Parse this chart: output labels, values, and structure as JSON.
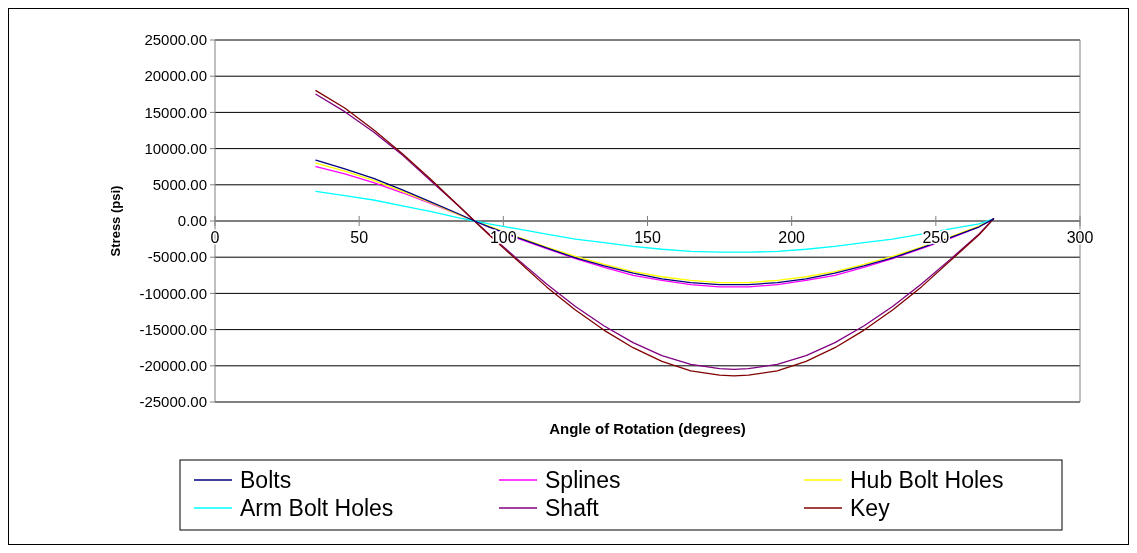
{
  "chart_data": {
    "type": "line",
    "xlabel": "Angle of Rotation (degrees)",
    "ylabel": "Stress (psi)",
    "x": [
      35,
      45,
      55,
      65,
      75,
      85,
      90,
      95,
      105,
      115,
      125,
      135,
      145,
      155,
      165,
      175,
      180,
      185,
      195,
      205,
      215,
      225,
      235,
      245,
      255,
      265,
      270
    ],
    "xlim": [
      0,
      300
    ],
    "xticks": [
      0,
      50,
      100,
      150,
      200,
      250,
      300
    ],
    "ylim": [
      -25000,
      25000
    ],
    "yticks": [
      {
        "value": -25000,
        "label": "-25000.00"
      },
      {
        "value": -20000,
        "label": "-20000.00"
      },
      {
        "value": -15000,
        "label": "-15000.00"
      },
      {
        "value": -10000,
        "label": "-10000.00"
      },
      {
        "value": -5000,
        "label": "-5000.00"
      },
      {
        "value": 0,
        "label": "0.00"
      },
      {
        "value": 5000,
        "label": "5000.00"
      },
      {
        "value": 10000,
        "label": "10000.00"
      },
      {
        "value": 15000,
        "label": "15000.00"
      },
      {
        "value": 20000,
        "label": "20000.00"
      },
      {
        "value": 25000,
        "label": "25000.00"
      }
    ],
    "grid": "y",
    "legend": "bottom",
    "marker": "none",
    "line_style": "solid",
    "series": [
      {
        "name": "Bolts",
        "color": "#000080",
        "values": [
          8400,
          7200,
          5900,
          4300,
          2600,
          900,
          0,
          -800,
          -2300,
          -3700,
          -5100,
          -6200,
          -7200,
          -8000,
          -8500,
          -8800,
          -8800,
          -8800,
          -8500,
          -8000,
          -7200,
          -6200,
          -5100,
          -3700,
          -2300,
          -800,
          300
        ]
      },
      {
        "name": "Splines",
        "color": "#ff00ff",
        "values": [
          7500,
          6500,
          5300,
          3900,
          2400,
          800,
          0,
          -800,
          -2400,
          -3800,
          -5200,
          -6400,
          -7500,
          -8200,
          -8800,
          -9100,
          -9100,
          -9100,
          -8800,
          -8200,
          -7500,
          -6400,
          -5200,
          -3800,
          -2400,
          -800,
          300
        ]
      },
      {
        "name": "Hub Bolt Holes",
        "color": "#ffff00",
        "values": [
          8000,
          6900,
          5600,
          4100,
          2500,
          800,
          0,
          -700,
          -2200,
          -3600,
          -4900,
          -6000,
          -7000,
          -7700,
          -8200,
          -8500,
          -8500,
          -8500,
          -8200,
          -7700,
          -7000,
          -6000,
          -4900,
          -3600,
          -2200,
          -700,
          300
        ]
      },
      {
        "name": "Arm Bolt Holes",
        "color": "#00ffff",
        "values": [
          4100,
          3500,
          2900,
          2100,
          1300,
          400,
          0,
          -400,
          -1100,
          -1800,
          -2500,
          -3000,
          -3500,
          -3900,
          -4200,
          -4300,
          -4300,
          -4300,
          -4200,
          -3900,
          -3500,
          -3000,
          -2500,
          -1800,
          -1100,
          -400,
          300
        ]
      },
      {
        "name": "Shaft",
        "color": "#800080",
        "values": [
          17500,
          15100,
          12300,
          9100,
          5500,
          1900,
          0,
          -1800,
          -5300,
          -8700,
          -11800,
          -14500,
          -16800,
          -18600,
          -19800,
          -20400,
          -20500,
          -20400,
          -19800,
          -18600,
          -16800,
          -14500,
          -11800,
          -8700,
          -5300,
          -1800,
          300
        ]
      },
      {
        "name": "Key",
        "color": "#800000",
        "values": [
          18000,
          15600,
          12600,
          9300,
          5700,
          1900,
          0,
          -1900,
          -5500,
          -9100,
          -12300,
          -15100,
          -17500,
          -19400,
          -20700,
          -21300,
          -21400,
          -21300,
          -20700,
          -19400,
          -17500,
          -15100,
          -12300,
          -9100,
          -5500,
          -1900,
          300
        ]
      }
    ]
  }
}
